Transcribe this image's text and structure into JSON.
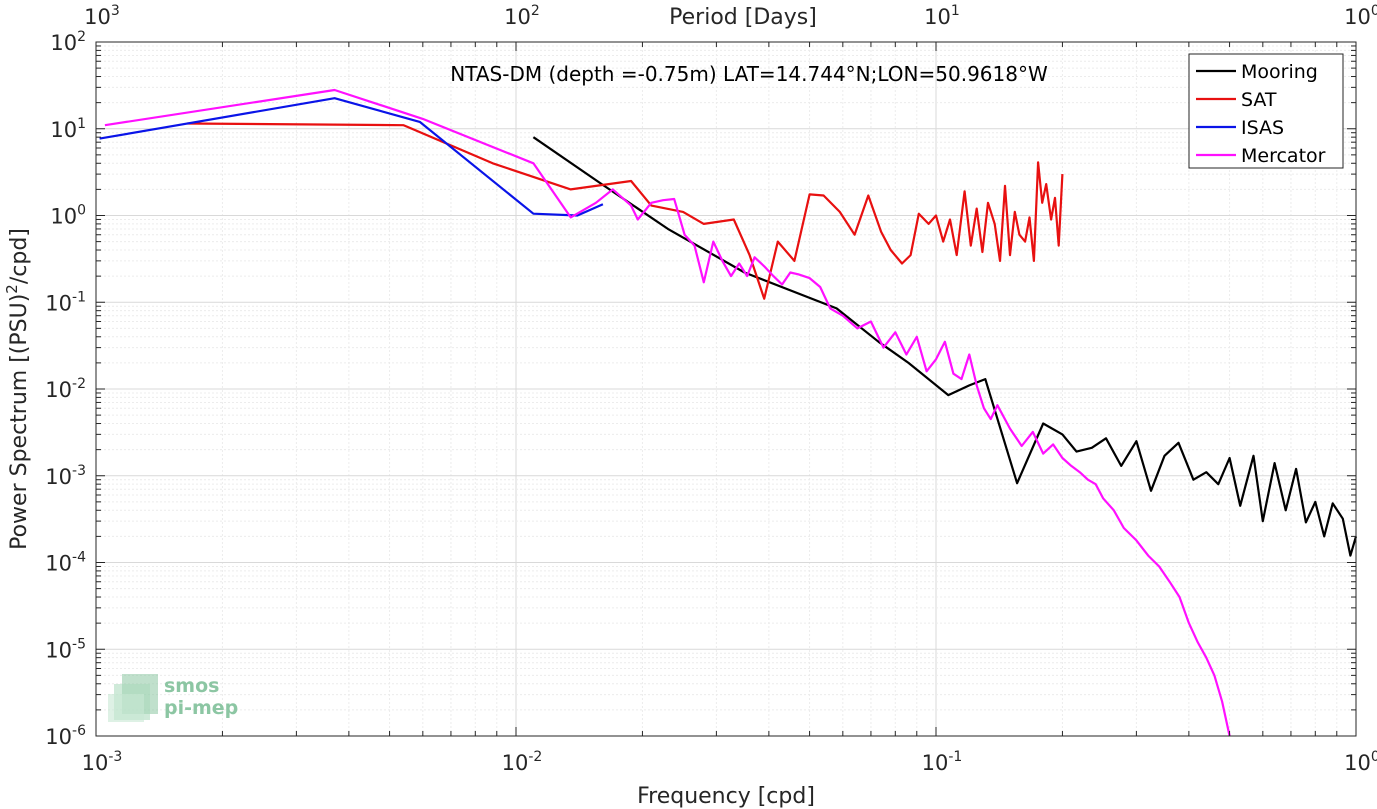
{
  "chart_data": {
    "type": "line",
    "title": "NTAS-DM (depth =-0.75m) LAT=14.744°N;LON=50.9618°W",
    "xlabel": "Frequency [cpd]",
    "ylabel": "Power Spectrum [(PSU)",
    "ylabel_sup": "2",
    "ylabel_tail": "/cpd]",
    "top_xlabel": "Period [Days]",
    "xscale": "log",
    "yscale": "log",
    "xlim": [
      0.001,
      1
    ],
    "ylim": [
      1e-06,
      100
    ],
    "grid": true,
    "legend_position": "top-right",
    "x_ticks": [
      {
        "value": 0.001,
        "base": "10",
        "exp": "-3"
      },
      {
        "value": 0.01,
        "base": "10",
        "exp": "-2"
      },
      {
        "value": 0.1,
        "base": "10",
        "exp": "-1"
      },
      {
        "value": 1,
        "base": "10",
        "exp": "0"
      }
    ],
    "top_ticks": [
      {
        "period": 1000,
        "base": "10",
        "exp": "3"
      },
      {
        "period": 100,
        "base": "10",
        "exp": "2"
      },
      {
        "period": 10,
        "base": "10",
        "exp": "1"
      },
      {
        "period": 1,
        "base": "10",
        "exp": "0"
      }
    ],
    "y_ticks": [
      {
        "value": 100,
        "base": "10",
        "exp": "2"
      },
      {
        "value": 10,
        "base": "10",
        "exp": "1"
      },
      {
        "value": 1,
        "base": "10",
        "exp": "0"
      },
      {
        "value": 0.1,
        "base": "10",
        "exp": "-1"
      },
      {
        "value": 0.01,
        "base": "10",
        "exp": "-2"
      },
      {
        "value": 0.001,
        "base": "10",
        "exp": "-3"
      },
      {
        "value": 0.0001,
        "base": "10",
        "exp": "-4"
      },
      {
        "value": 1e-05,
        "base": "10",
        "exp": "-5"
      },
      {
        "value": 1e-06,
        "base": "10",
        "exp": "-6"
      }
    ],
    "series": [
      {
        "name": "Mooring",
        "color": "#000000",
        "x": [
          0.011,
          0.016,
          0.023,
          0.035,
          0.058,
          0.073,
          0.086,
          0.107,
          0.12,
          0.131,
          0.156,
          0.18,
          0.2,
          0.216,
          0.235,
          0.254,
          0.276,
          0.3,
          0.325,
          0.35,
          0.378,
          0.41,
          0.44,
          0.47,
          0.5,
          0.53,
          0.57,
          0.6,
          0.64,
          0.68,
          0.72,
          0.76,
          0.8,
          0.84,
          0.88,
          0.93,
          0.97,
          1.0
        ],
        "y": [
          8.0,
          2.3,
          0.7,
          0.22,
          0.085,
          0.035,
          0.02,
          0.0085,
          0.011,
          0.013,
          0.00082,
          0.004,
          0.003,
          0.0019,
          0.0021,
          0.0027,
          0.0013,
          0.0025,
          0.00067,
          0.0017,
          0.0024,
          0.0009,
          0.0011,
          0.0008,
          0.0016,
          0.00045,
          0.0017,
          0.0003,
          0.0014,
          0.0004,
          0.0012,
          0.00029,
          0.0005,
          0.0002,
          0.00048,
          0.00032,
          0.00012,
          0.0002
        ]
      },
      {
        "name": "SAT",
        "color": "#e81010",
        "x": [
          0.00165,
          0.0054,
          0.0088,
          0.0135,
          0.0188,
          0.021,
          0.025,
          0.028,
          0.033,
          0.036,
          0.039,
          0.042,
          0.046,
          0.05,
          0.054,
          0.059,
          0.064,
          0.069,
          0.074,
          0.078,
          0.083,
          0.087,
          0.091,
          0.096,
          0.1,
          0.104,
          0.108,
          0.112,
          0.117,
          0.121,
          0.125,
          0.129,
          0.133,
          0.138,
          0.142,
          0.146,
          0.15,
          0.154,
          0.158,
          0.163,
          0.167,
          0.171,
          0.175,
          0.179,
          0.183,
          0.188,
          0.192,
          0.196,
          0.2
        ],
        "y": [
          11.5,
          11.0,
          4.0,
          2.0,
          2.5,
          1.3,
          1.1,
          0.8,
          0.9,
          0.35,
          0.11,
          0.5,
          0.3,
          1.75,
          1.7,
          1.1,
          0.6,
          1.7,
          0.65,
          0.4,
          0.28,
          0.35,
          1.05,
          0.8,
          1.0,
          0.5,
          0.9,
          0.35,
          1.9,
          0.45,
          1.2,
          0.38,
          1.4,
          0.8,
          0.3,
          2.2,
          0.35,
          1.1,
          0.6,
          0.5,
          0.95,
          0.3,
          4.1,
          1.4,
          2.3,
          0.9,
          1.6,
          0.45,
          3.0
        ]
      },
      {
        "name": "ISAS",
        "color": "#0a14e8",
        "x": [
          0.00102,
          0.0037,
          0.0059,
          0.011,
          0.014,
          0.0161
        ],
        "y": [
          7.7,
          22.5,
          12.0,
          1.05,
          1.0,
          1.35
        ]
      },
      {
        "name": "Mercator",
        "color": "#ff10ff",
        "x": [
          0.00105,
          0.0037,
          0.006,
          0.011,
          0.0135,
          0.0155,
          0.017,
          0.0188,
          0.0195,
          0.021,
          0.0224,
          0.0238,
          0.0252,
          0.0266,
          0.028,
          0.0295,
          0.031,
          0.0325,
          0.034,
          0.0355,
          0.037,
          0.039,
          0.041,
          0.043,
          0.045,
          0.047,
          0.05,
          0.053,
          0.056,
          0.06,
          0.065,
          0.07,
          0.075,
          0.08,
          0.085,
          0.09,
          0.095,
          0.1,
          0.105,
          0.11,
          0.115,
          0.12,
          0.125,
          0.13,
          0.135,
          0.14,
          0.15,
          0.16,
          0.17,
          0.18,
          0.19,
          0.2,
          0.21,
          0.22,
          0.23,
          0.24,
          0.25,
          0.265,
          0.28,
          0.3,
          0.32,
          0.34,
          0.36,
          0.38,
          0.4,
          0.42,
          0.44,
          0.46,
          0.48,
          0.5
        ],
        "y": [
          11.0,
          28.0,
          13.0,
          4.0,
          0.95,
          1.4,
          2.0,
          1.3,
          0.9,
          1.4,
          1.5,
          1.55,
          0.6,
          0.45,
          0.17,
          0.5,
          0.3,
          0.2,
          0.28,
          0.2,
          0.33,
          0.26,
          0.2,
          0.16,
          0.22,
          0.21,
          0.19,
          0.15,
          0.085,
          0.07,
          0.05,
          0.06,
          0.03,
          0.045,
          0.025,
          0.04,
          0.016,
          0.022,
          0.035,
          0.015,
          0.013,
          0.025,
          0.011,
          0.006,
          0.0045,
          0.0065,
          0.0035,
          0.0022,
          0.0032,
          0.0018,
          0.0023,
          0.0016,
          0.0013,
          0.0011,
          0.0009,
          0.0008,
          0.00055,
          0.0004,
          0.00025,
          0.00018,
          0.00012,
          9e-05,
          6e-05,
          4e-05,
          2e-05,
          1.2e-05,
          8e-06,
          5e-06,
          2.5e-06,
          1e-06
        ]
      }
    ]
  },
  "logo": {
    "line1": "smos",
    "line2": "pi-mep"
  }
}
